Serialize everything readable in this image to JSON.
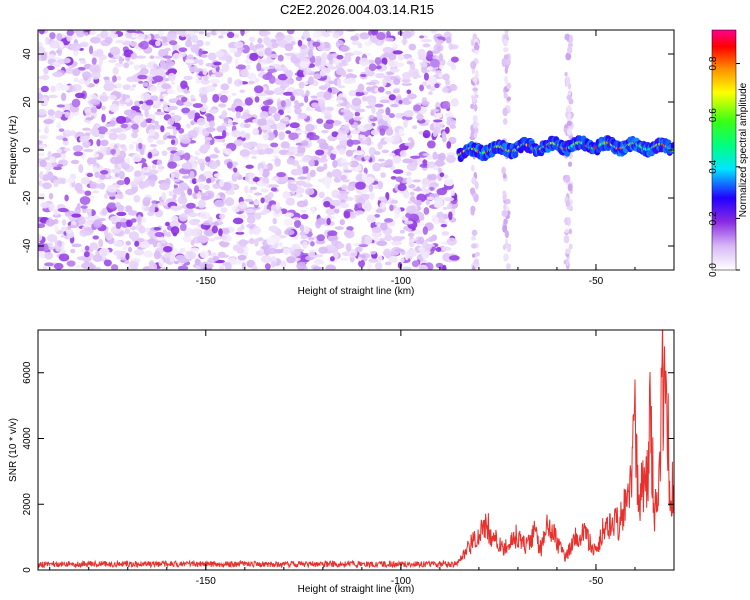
{
  "figure_title": "C2E2.2026.004.03.14.R15",
  "chart_data": [
    {
      "type": "heatmap",
      "xlabel": "Height of straight line (km)",
      "ylabel": "Frequency (Hz)",
      "xlim": [
        -193,
        -30
      ],
      "ylim": [
        -50,
        50
      ],
      "x_ticks": [
        -150,
        -100,
        -50
      ],
      "x_tick_labels": [
        "-150",
        "-100",
        "-50"
      ],
      "y_ticks": [
        -40,
        -20,
        0,
        20,
        40
      ],
      "y_tick_labels": [
        "-40",
        "-20",
        "0",
        "20",
        "40"
      ],
      "colorbar": {
        "label": "Normalized spectral amplitude",
        "range": [
          0,
          0.93
        ],
        "ticks": [
          0,
          0.2,
          0.4,
          0.6,
          0.8
        ],
        "tick_labels": [
          "0.0",
          "0.2",
          "0.4",
          "0.6",
          "0.8"
        ],
        "colormap": "rainbow (white-violet-blue-cyan-green-yellow-orange-red-magenta)"
      },
      "regions": [
        {
          "description": "broadband noise",
          "x_range": [
            -193,
            -86
          ],
          "y_range": [
            -50,
            50
          ],
          "amplitude_range": [
            0.0,
            0.12
          ]
        },
        {
          "description": "signal band",
          "x_range": [
            -85,
            -30
          ],
          "frequency_start": -1,
          "frequency_end": 1,
          "amplitude_range": [
            0.3,
            0.9
          ]
        },
        {
          "description": "vertical noise streaks",
          "x_values": [
            -81,
            -73,
            -57
          ],
          "amplitude_range": [
            0.0,
            0.1
          ]
        }
      ]
    },
    {
      "type": "line",
      "xlabel": "Height of straight line (km)",
      "ylabel": "SNR (10 * v/v)",
      "xlim": [
        -193,
        -30
      ],
      "ylim": [
        0,
        7300
      ],
      "x_ticks": [
        -150,
        -100,
        -50
      ],
      "x_tick_labels": [
        "-150",
        "-100",
        "-50"
      ],
      "y_ticks": [
        0,
        2000,
        4000,
        6000
      ],
      "y_tick_labels": [
        "0",
        "2000",
        "4000",
        "6000"
      ],
      "series": [
        {
          "name": "SNR",
          "color": "#e8302c",
          "baseline_level": 180,
          "x": [
            -193,
            -180,
            -165,
            -150,
            -135,
            -120,
            -105,
            -90,
            -86,
            -84,
            -82,
            -80,
            -78,
            -76,
            -74,
            -72,
            -70,
            -68,
            -66,
            -64,
            -62,
            -60,
            -58,
            -56,
            -54,
            -52,
            -50,
            -48,
            -46,
            -44,
            -42,
            -41,
            -40,
            -39,
            -38,
            -37,
            -36,
            -35,
            -34,
            -33,
            -32,
            -31,
            -30
          ],
          "y": [
            160,
            170,
            175,
            180,
            170,
            175,
            180,
            190,
            200,
            450,
            900,
            1100,
            1500,
            1050,
            700,
            900,
            1200,
            800,
            1300,
            700,
            1700,
            950,
            400,
            900,
            1300,
            1000,
            600,
            1400,
            1700,
            1500,
            2300,
            2800,
            4900,
            2200,
            3000,
            2900,
            5300,
            1800,
            2500,
            6400,
            7300,
            2000,
            3100
          ]
        }
      ]
    }
  ]
}
